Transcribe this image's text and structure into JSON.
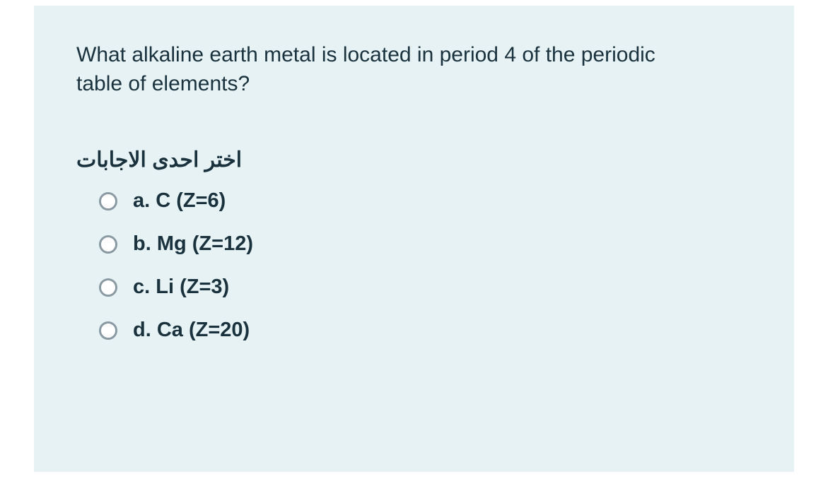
{
  "card": {
    "background_color": "#e7f2f4",
    "text_color": "#19323d",
    "question": "What alkaline earth metal is located in period 4 of the periodic table of elements?",
    "instruction": "اختر احدى الاجابات",
    "options": [
      {
        "label": "a. C (Z=6)"
      },
      {
        "label": "b. Mg (Z=12)"
      },
      {
        "label": "c. Li (Z=3)"
      },
      {
        "label": "d. Ca (Z=20)"
      }
    ]
  }
}
